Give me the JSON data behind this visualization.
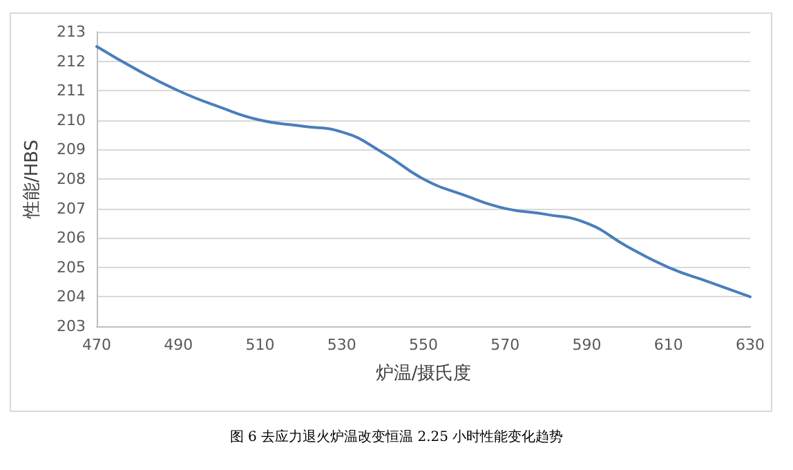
{
  "chart_data": {
    "type": "line",
    "xlabel": "炉温/摄氏度",
    "ylabel": "性能/HBS",
    "annotations": [
      "图 6 去应力退火炉温改变恒温 2.25 小时性能变化趋势"
    ],
    "x": [
      470,
      480,
      490,
      500,
      510,
      520,
      530,
      540,
      550,
      560,
      570,
      580,
      590,
      600,
      610,
      620,
      630
    ],
    "series": [
      {
        "color": "#4a7ebb",
        "values": [
          212.5,
          211.7,
          211.0,
          210.45,
          210.0,
          209.8,
          209.6,
          208.9,
          208.0,
          207.45,
          207.0,
          206.8,
          206.5,
          205.7,
          205.0,
          204.5,
          204.0
        ]
      }
    ],
    "xlim": [
      470,
      630
    ],
    "xticks": [
      470,
      490,
      510,
      530,
      550,
      570,
      590,
      610,
      630
    ],
    "ylim": [
      203,
      213
    ],
    "yticks": [
      203,
      204,
      205,
      206,
      207,
      208,
      209,
      210,
      211,
      212,
      213
    ],
    "grid": "y",
    "marker": "none",
    "line_style": "solid"
  }
}
